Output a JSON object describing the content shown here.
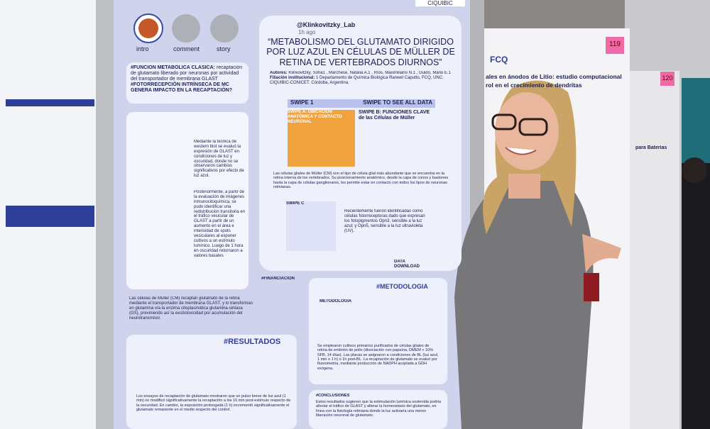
{
  "main_poster": {
    "header_tag": "CIQUIBIC",
    "stories": [
      "intro",
      "comment",
      "story"
    ],
    "handle": "@Klinkovitzky_Lab",
    "time": "1h ago",
    "title": "“METABOLISMO DEL GLUTAMATO DIRIGIDO POR LUZ AZUL EN CÉLULAS DE MÜLLER DE RETINA DE VERTEBRADOS DIURNOS”",
    "authors_label": "Autores:",
    "authors": "Klinkovitzky, Sofía1 , Marchese, Natalia A.1 , Ríos, Maximiliano N.1 , Guido, Mario E.1",
    "affiliation_label": "Filiación institucional:",
    "affiliation": "1 Departamento de Química Biológica Ranwel Caputto, FCQ, UNC. CIQUIBIC-CONICET. Córdoba, Argentina.",
    "hashtag_1": "#FUNCIÓN METABÓLICA CLÁSICA:",
    "hashtag_1_text": "recaptación de glutamato liberado por neuronas por actividad del transportador de membrana GLAST",
    "hashtag_2": "#FOTORRECEPCIÓN INTRÍNSECA DE MC GENERA IMPACTO EN LA RECAPTACIÓN?",
    "swipe_label": "SWIPE 1",
    "swipe_hint": "SWIPE TO SEE ALL DATA",
    "swipe_a": "SWIPE A: UBICACIÓN ANATÓMICA Y CONTACTO NEURONAL",
    "swipe_b": "SWIPE B: FUNCIONES CLAVE de las Células de Müller",
    "swipe_c": "SWIPE C",
    "muller_text": "Las células gliales de Müller (CM) son el tipo de célula glial más abundante que se encuentra en la retina interna de los vertebrados. Su posicionamiento anatómico, desde la capa de conos y bastones hasta la capa de células ganglionares, les permite estar en contacto con todos los tipos de neuronas retinianas.",
    "opsin_text": "Recientemente fueron identificadas como células fotorreceptoras dado que expresan los fotopigmentos Opn3, sensible a la luz azul; y Opn5, sensible a la luz ultravioleta (UV).",
    "download": "DATA DOWNLOAD",
    "result_text_1": "Mediante la técnica de western blot se evaluó la expresión de GLAST en condiciones de luz y oscuridad, donde no se observaron cambios significativos por efecto de luz azul.",
    "result_text_2": "Posteriormente, a partir de la evaluación de imágenes inmunocitoquímica, se pudo identificar una redistribución transitoria en el tráfico vesicular de GLAST a partir de un aumento en el área e intensidad de spots vesiculares al exponer cultivos a un estímulo lumínico. Luego de 1 hora en oscuridad retornaron a valores basales",
    "cm_text": "Las células de Müller (CM) recaptan glutamato de la retina mediante el transportador de membrana GLAST, y lo transforman en glutamina vía la enzima citoplasmática glutamina-sintasa (GS), previniendo así la excitotoxicidad por acumulación del neurotransmisor.",
    "financing": "#FINANCIACION",
    "methodology": "#METODOLOGIA",
    "methodology_sub": "METODOLOGÍA",
    "methodology_text": "Se emplearon cultivos primarios purificados de células gliales de retina de embrión de pollo (disociación con papaína, DMEM + 10% SFB, 14 días). Las placas se asignaron a condiciones de BL (luz azul, 1 min o 1 h) o 1h post-BL. La recaptación de glutamato se evaluó por fluorometría, mediante producción de NADPH acoplada a GDH exógena.",
    "results": "#RESULTADOS",
    "results_text": "Los ensayos de recaptación de glutamato mostraron que un pulso breve de luz azul (1 min) no modificó significativamente la recaptación a los 15 min post-estímulo respecto de la oscuridad. En cambio, la exposición prolongada (1 h) incrementó significativamente el glutamato remanente en el medio respecto del control.",
    "conclusions": "#CONCLUSIONES",
    "conclusions_text": "Estos resultados sugieren que la estimulación lumínica sostenida podría afectar el tráfico de GLAST y alterar la homeostasis del glutamato, en línea con la fisiología retiniana donde la luz activaría una menor liberación neuronal de glutamato."
  },
  "right_poster": {
    "title": "ales en ánodos de Litio: estudio computacional",
    "subtitle": "rol en el crecimiento de dendritas",
    "logo": "FCQ",
    "side_title": "para Baterías"
  },
  "notes": [
    "119",
    "120"
  ]
}
